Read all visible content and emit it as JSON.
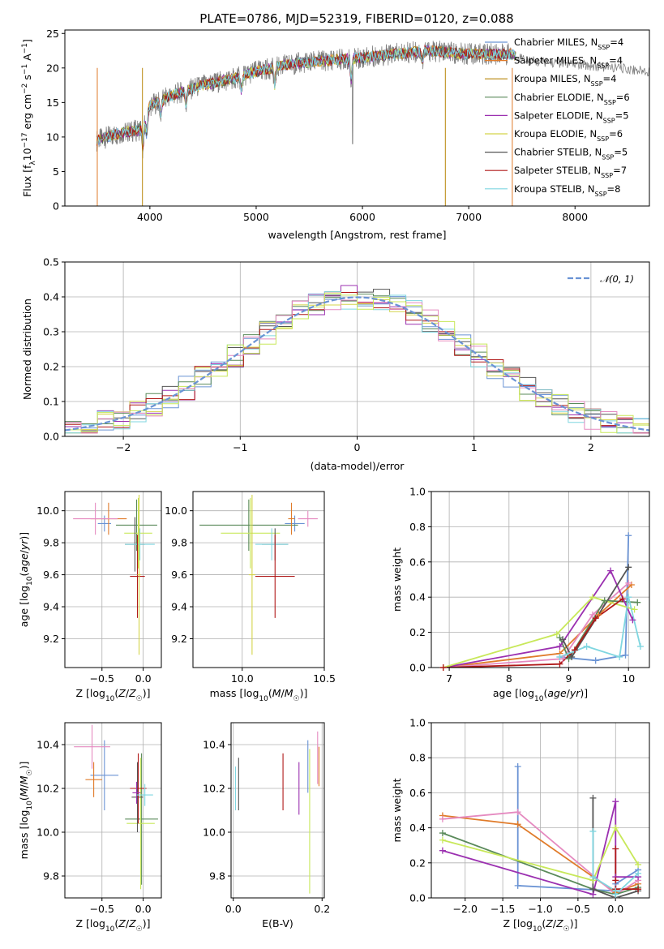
{
  "colors": [
    "#6a93d4",
    "#e07b2a",
    "#b8860b",
    "#5a8a5a",
    "#9b30b0",
    "#d4d44a",
    "#555555",
    "#b01818",
    "#7fd6e0",
    "#e58ac0",
    "#c8e85a"
  ],
  "chart_data": [
    {
      "id": "spectrum",
      "type": "line",
      "title": "PLATE=0786, MJD=52319, FIBERID=0120, z=0.088",
      "xlabel": "wavelength [Angstrom, rest frame]",
      "ylabel": "Flux [f_λ 10^-17 erg cm^-2 s^-1 A^-1]",
      "xlim": [
        3200,
        8700
      ],
      "ylim": [
        0,
        25.5
      ],
      "xticks": [
        4000,
        5000,
        6000,
        7000,
        8000
      ],
      "yticks": [
        0,
        5,
        10,
        15,
        20,
        25
      ],
      "legend_location": "top-right",
      "legend": [
        {
          "name": "Chabrier MILES, N_SSP=4",
          "prefix": "Chabrier MILES, N",
          "sub": "SSP",
          "suffix": "=4",
          "color": "#6a93d4"
        },
        {
          "name": "Salpeter MILES, N_SSP=4",
          "prefix": "Salpeter MILES, N",
          "sub": "SSP",
          "suffix": "=4",
          "color": "#e07b2a"
        },
        {
          "name": "Kroupa MILES, N_SSP=4",
          "prefix": "Kroupa MILES, N",
          "sub": "SSP",
          "suffix": "=4",
          "color": "#b8860b"
        },
        {
          "name": "Chabrier ELODIE, N_SSP=6",
          "prefix": "Chabrier ELODIE, N",
          "sub": "SSP",
          "suffix": "=6",
          "color": "#5a8a5a"
        },
        {
          "name": "Salpeter ELODIE, N_SSP=5",
          "prefix": "Salpeter ELODIE, N",
          "sub": "SSP",
          "suffix": "=5",
          "color": "#9b30b0"
        },
        {
          "name": "Kroupa ELODIE, N_SSP=6",
          "prefix": "Kroupa ELODIE, N",
          "sub": "SSP",
          "suffix": "=6",
          "color": "#d4d44a"
        },
        {
          "name": "Chabrier STELIB, N_SSP=5",
          "prefix": "Chabrier STELIB, N",
          "sub": "SSP",
          "suffix": "=5",
          "color": "#555555"
        },
        {
          "name": "Salpeter STELIB, N_SSP=7",
          "prefix": "Salpeter STELIB, N",
          "sub": "SSP",
          "suffix": "=7",
          "color": "#b01818"
        },
        {
          "name": "Kroupa STELIB, N_SSP=8",
          "prefix": "Kroupa STELIB, N",
          "sub": "SSP",
          "suffix": "=8",
          "color": "#7fd6e0"
        }
      ],
      "continuum": [
        [
          3500,
          9.5
        ],
        [
          3700,
          10.5
        ],
        [
          3900,
          11
        ],
        [
          4000,
          14.5
        ],
        [
          4200,
          16
        ],
        [
          4500,
          17.5
        ],
        [
          4800,
          18.5
        ],
        [
          5000,
          19.5
        ],
        [
          5300,
          20.5
        ],
        [
          5600,
          21
        ],
        [
          6000,
          21.5
        ],
        [
          6300,
          22
        ],
        [
          6600,
          22.5
        ],
        [
          7000,
          22
        ],
        [
          7400,
          22
        ],
        [
          7600,
          21
        ],
        [
          8000,
          20.5
        ],
        [
          8400,
          20
        ],
        [
          8700,
          19.5
        ]
      ]
    },
    {
      "id": "residuals",
      "type": "line",
      "xlabel": "(data-model)/error",
      "ylabel": "Normed distribution",
      "xlim": [
        -2.5,
        2.5
      ],
      "ylim": [
        0,
        0.5
      ],
      "xticks": [
        -2,
        -1,
        0,
        1,
        2
      ],
      "yticks": [
        0.0,
        0.1,
        0.2,
        0.3,
        0.4,
        0.5
      ],
      "legend_location": "top-right",
      "series": [
        {
          "name": "𝒩(0, 1)",
          "type": "gaussian",
          "mu": 0,
          "sigma": 1,
          "color": "#6a93d4"
        }
      ]
    },
    {
      "id": "age_vs_Z",
      "type": "scatter",
      "xlabel": "Z [log10(Z/Z☉)]",
      "ylabel": "age  [log10(age/yr)]",
      "xlim": [
        -0.95,
        0.22
      ],
      "ylim": [
        9.02,
        10.12
      ],
      "xticks": [
        -0.5,
        0.0
      ],
      "yticks": [
        9.2,
        9.4,
        9.6,
        9.8,
        10.0
      ],
      "points": [
        {
          "x": -0.47,
          "y": 9.92,
          "xerr": 0.08,
          "yerr": 0.05,
          "c": 0
        },
        {
          "x": -0.42,
          "y": 9.95,
          "xerr": 0.22,
          "yerr": 0.1,
          "c": 1
        },
        {
          "x": -0.08,
          "y": 9.91,
          "xerr": 0.25,
          "yerr": 0.16,
          "c": 3
        },
        {
          "x": -0.06,
          "y": 9.86,
          "xerr": 0.17,
          "yerr": 0.22,
          "c": 10
        },
        {
          "x": -0.1,
          "y": 9.79,
          "xerr": 0.12,
          "yerr": 0.17,
          "c": 6
        },
        {
          "x": -0.04,
          "y": 9.79,
          "xerr": 0.18,
          "yerr": 0.1,
          "c": 8
        },
        {
          "x": -0.07,
          "y": 9.59,
          "xerr": 0.09,
          "yerr": 0.26,
          "c": 7
        },
        {
          "x": -0.58,
          "y": 9.95,
          "xerr": 0.27,
          "yerr": 0.1,
          "c": 9
        },
        {
          "x": -0.05,
          "y": 9.6,
          "xerr": 0.02,
          "yerr": 0.5,
          "c": 5
        }
      ]
    },
    {
      "id": "age_vs_mass",
      "type": "scatter",
      "xlabel": "mass [log10(M/M☉)]",
      "ylabel": "",
      "xlim": [
        9.7,
        10.5
      ],
      "ylim": [
        9.02,
        10.12
      ],
      "xticks": [
        10.0,
        10.5
      ],
      "yticks": [
        9.2,
        9.4,
        9.6,
        9.8,
        10.0
      ],
      "points": [
        {
          "x": 10.32,
          "y": 9.92,
          "xerr": 0.06,
          "yerr": 0.05,
          "c": 0
        },
        {
          "x": 10.4,
          "y": 9.95,
          "xerr": 0.06,
          "yerr": 0.05,
          "c": 9
        },
        {
          "x": 10.04,
          "y": 9.91,
          "xerr": 0.3,
          "yerr": 0.16,
          "c": 3
        },
        {
          "x": 10.05,
          "y": 9.86,
          "xerr": 0.18,
          "yerr": 0.22,
          "c": 10
        },
        {
          "x": 10.2,
          "y": 9.79,
          "xerr": 0.08,
          "yerr": 0.1,
          "c": 6
        },
        {
          "x": 10.18,
          "y": 9.79,
          "xerr": 0.1,
          "yerr": 0.1,
          "c": 8
        },
        {
          "x": 10.2,
          "y": 9.59,
          "xerr": 0.12,
          "yerr": 0.26,
          "c": 7
        },
        {
          "x": 10.06,
          "y": 9.6,
          "xerr": 0.02,
          "yerr": 0.5,
          "c": 5
        },
        {
          "x": 10.3,
          "y": 9.95,
          "xerr": 0.02,
          "yerr": 0.1,
          "c": 1
        }
      ]
    },
    {
      "id": "weight_vs_age",
      "type": "line",
      "xlabel": "age  [log10(age/yr)]",
      "ylabel": "mass weight",
      "xlim": [
        6.7,
        10.35
      ],
      "ylim": [
        0,
        1.0
      ],
      "xticks": [
        7,
        8,
        9,
        10
      ],
      "yticks": [
        0.0,
        0.2,
        0.4,
        0.6,
        0.8,
        1.0
      ],
      "series": [
        {
          "c": 0,
          "x": [
            8.85,
            9.45,
            9.95,
            10.0
          ],
          "y": [
            0.06,
            0.04,
            0.07,
            0.75
          ]
        },
        {
          "c": 1,
          "x": [
            6.9,
            8.85,
            9.5,
            10.05
          ],
          "y": [
            0.0,
            0.08,
            0.3,
            0.47
          ]
        },
        {
          "c": 9,
          "x": [
            6.9,
            8.9,
            9.4,
            10.0
          ],
          "y": [
            0.0,
            0.05,
            0.3,
            0.48
          ]
        },
        {
          "c": 3,
          "x": [
            8.85,
            9.0,
            9.6,
            10.15
          ],
          "y": [
            0.17,
            0.05,
            0.38,
            0.37
          ]
        },
        {
          "c": 4,
          "x": [
            6.9,
            8.85,
            9.7,
            10.07
          ],
          "y": [
            0.0,
            0.12,
            0.55,
            0.27
          ]
        },
        {
          "c": 10,
          "x": [
            6.9,
            8.8,
            9.4,
            10.1
          ],
          "y": [
            0.0,
            0.19,
            0.4,
            0.33
          ]
        },
        {
          "c": 6,
          "x": [
            8.9,
            9.05,
            10.0
          ],
          "y": [
            0.16,
            0.06,
            0.57
          ]
        },
        {
          "c": 7,
          "x": [
            6.9,
            8.85,
            9.1,
            9.45,
            9.9
          ],
          "y": [
            0.0,
            0.02,
            0.1,
            0.28,
            0.39
          ]
        },
        {
          "c": 8,
          "x": [
            8.85,
            9.3,
            9.85,
            10.0,
            10.2
          ],
          "y": [
            0.06,
            0.12,
            0.06,
            0.4,
            0.12
          ]
        }
      ]
    },
    {
      "id": "mass_vs_Z",
      "type": "scatter",
      "xlabel": "Z [log10(Z/Z☉)]",
      "ylabel": "mass [log10(M/M☉)]",
      "xlim": [
        -0.95,
        0.22
      ],
      "ylim": [
        9.7,
        10.5
      ],
      "xticks": [
        -0.5,
        0.0
      ],
      "yticks": [
        9.8,
        10.0,
        10.2,
        10.4
      ],
      "points": [
        {
          "x": -0.47,
          "y": 10.26,
          "xerr": 0.17,
          "yerr": 0.16,
          "c": 0
        },
        {
          "x": -0.6,
          "y": 10.24,
          "xerr": 0.1,
          "yerr": 0.08,
          "c": 1
        },
        {
          "x": -0.62,
          "y": 10.39,
          "xerr": 0.22,
          "yerr": 0.1,
          "c": 9
        },
        {
          "x": -0.02,
          "y": 10.06,
          "xerr": 0.2,
          "yerr": 0.3,
          "c": 3
        },
        {
          "x": -0.03,
          "y": 10.04,
          "xerr": 0.17,
          "yerr": 0.3,
          "c": 10
        },
        {
          "x": -0.07,
          "y": 10.16,
          "xerr": 0.07,
          "yerr": 0.16,
          "c": 6
        },
        {
          "x": -0.06,
          "y": 10.2,
          "xerr": 0.1,
          "yerr": 0.16,
          "c": 7
        },
        {
          "x": -0.08,
          "y": 10.18,
          "xerr": 0.05,
          "yerr": 0.05,
          "c": 4
        },
        {
          "x": 0.02,
          "y": 10.17,
          "xerr": 0.1,
          "yerr": 0.05,
          "c": 8
        }
      ]
    },
    {
      "id": "mass_vs_ebv",
      "type": "scatter",
      "xlabel": "E(B-V)",
      "ylabel": "",
      "xlim": [
        -0.005,
        0.205
      ],
      "ylim": [
        9.7,
        10.5
      ],
      "xticks": [
        0.0,
        0.2
      ],
      "yticks": [
        9.8,
        10.0,
        10.2,
        10.4
      ],
      "points": [
        {
          "x": 0.012,
          "y": 10.22,
          "yerr": 0.12,
          "c": 6
        },
        {
          "x": 0.112,
          "y": 10.23,
          "yerr": 0.13,
          "c": 7
        },
        {
          "x": 0.148,
          "y": 10.2,
          "yerr": 0.12,
          "c": 4
        },
        {
          "x": 0.168,
          "y": 10.3,
          "yerr": 0.12,
          "c": 0
        },
        {
          "x": 0.172,
          "y": 10.05,
          "yerr": 0.33,
          "c": 10
        },
        {
          "x": 0.19,
          "y": 10.34,
          "yerr": 0.12,
          "c": 9
        },
        {
          "x": 0.193,
          "y": 10.3,
          "yerr": 0.09,
          "c": 1
        },
        {
          "x": 0.005,
          "y": 10.2,
          "yerr": 0.1,
          "c": 8
        }
      ]
    },
    {
      "id": "weight_vs_Z",
      "type": "line",
      "xlabel": "Z [log10(Z/Z☉)]",
      "ylabel": "mass weight",
      "xlim": [
        -2.45,
        0.45
      ],
      "ylim": [
        0,
        1.0
      ],
      "xticks": [
        -2.0,
        -1.5,
        -1.0,
        -0.5,
        0.0
      ],
      "yticks": [
        0.0,
        0.2,
        0.4,
        0.6,
        0.8,
        1.0
      ],
      "series": [
        {
          "c": 0,
          "x": [
            -1.3,
            -1.3,
            0.0,
            0.0,
            0.3
          ],
          "y": [
            0.75,
            0.07,
            0.04,
            0.08,
            0.16
          ]
        },
        {
          "c": 1,
          "x": [
            -2.3,
            -1.3,
            0.0,
            0.3
          ],
          "y": [
            0.47,
            0.42,
            0.03,
            0.08
          ]
        },
        {
          "c": 9,
          "x": [
            -2.3,
            -1.3,
            0.0,
            0.3
          ],
          "y": [
            0.45,
            0.49,
            0.02,
            0.1
          ]
        },
        {
          "c": 3,
          "x": [
            -2.3,
            -0.3,
            0.0,
            0.3
          ],
          "y": [
            0.37,
            0.05,
            0.02,
            0.06
          ]
        },
        {
          "c": 4,
          "x": [
            -2.3,
            -0.3,
            0.0,
            0.0,
            0.3
          ],
          "y": [
            0.27,
            0.02,
            0.55,
            0.12,
            0.12
          ]
        },
        {
          "c": 10,
          "x": [
            -2.3,
            -0.3,
            0.0,
            0.3
          ],
          "y": [
            0.33,
            0.1,
            0.4,
            0.19
          ]
        },
        {
          "c": 6,
          "x": [
            -0.3,
            -0.3,
            0.0,
            0.3
          ],
          "y": [
            0.57,
            0.05,
            0.0,
            0.04
          ]
        },
        {
          "c": 7,
          "x": [
            0.0,
            0.0,
            0.0,
            0.3
          ],
          "y": [
            0.28,
            0.1,
            0.05,
            0.05
          ]
        },
        {
          "c": 8,
          "x": [
            -0.3,
            -0.3,
            0.0,
            0.0,
            0.3
          ],
          "y": [
            0.38,
            0.12,
            0.04,
            0.02,
            0.14
          ]
        }
      ]
    }
  ]
}
